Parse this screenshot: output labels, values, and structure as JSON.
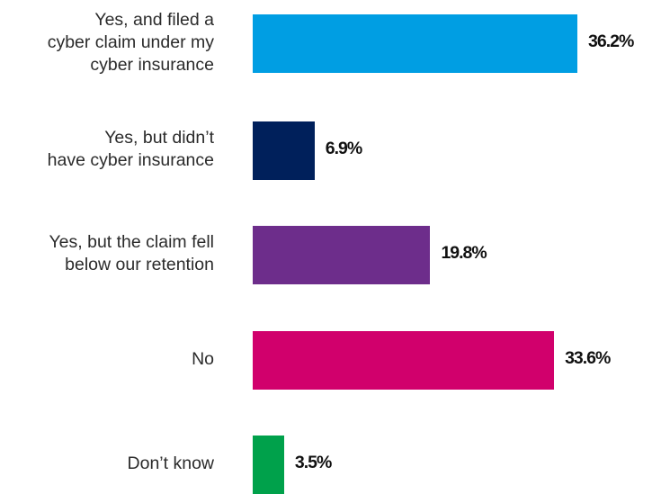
{
  "chart_data": {
    "type": "bar",
    "orientation": "horizontal",
    "categories": [
      [
        "Yes, and filed a",
        "cyber claim under my",
        "cyber insurance"
      ],
      [
        "Yes, but didn’t",
        "have cyber insurance"
      ],
      [
        "Yes, but the claim fell",
        "below our retention"
      ],
      [
        "No"
      ],
      [
        "Don’t know"
      ]
    ],
    "values": [
      36.2,
      6.9,
      19.8,
      33.6,
      3.5
    ],
    "value_labels": [
      "36.2%",
      "6.9%",
      "19.8%",
      "33.6%",
      "3.5%"
    ],
    "colors": [
      "#009ee3",
      "#00205b",
      "#6d2d8b",
      "#d1006c",
      "#00a14b"
    ],
    "xlim": [
      0,
      36.2
    ],
    "grid": false,
    "legend": "none"
  }
}
